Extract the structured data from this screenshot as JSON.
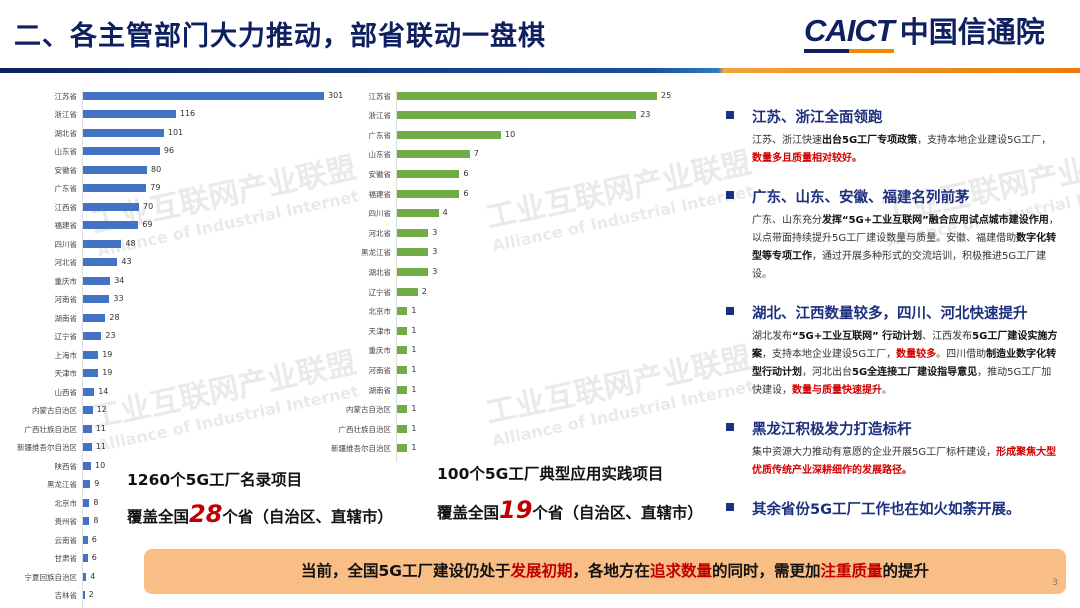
{
  "header": {
    "title": "二、各主管部门大力推动，部省联动一盘棋",
    "logo_en": "CAICT",
    "logo_cn": "中国信通院"
  },
  "watermark": {
    "cn": "工业互联网产业联盟",
    "en": "Alliance of Industrial Internet"
  },
  "colors": {
    "left_bar": "#4472c4",
    "right_bar": "#70ad47",
    "accent_red": "#c00000",
    "navy": "#1d2f7f",
    "banner": "#f8be86"
  },
  "chart_data": [
    {
      "type": "bar",
      "orientation": "horizontal",
      "categories": [
        "江苏省",
        "浙江省",
        "湖北省",
        "山东省",
        "安徽省",
        "广东省",
        "江西省",
        "福建省",
        "四川省",
        "河北省",
        "重庆市",
        "河南省",
        "湖南省",
        "辽宁省",
        "上海市",
        "天津市",
        "山西省",
        "内蒙古自治区",
        "广西壮族自治区",
        "新疆维吾尔自治区",
        "陕西省",
        "黑龙江省",
        "北京市",
        "贵州省",
        "云南省",
        "甘肃省",
        "宁夏回族自治区",
        "吉林省"
      ],
      "values": [
        301,
        116,
        101,
        96,
        80,
        79,
        70,
        69,
        48,
        43,
        34,
        33,
        28,
        23,
        19,
        19,
        14,
        12,
        11,
        11,
        10,
        9,
        8,
        8,
        6,
        6,
        4,
        2
      ]
    },
    {
      "type": "bar",
      "orientation": "horizontal",
      "categories": [
        "江苏省",
        "浙江省",
        "广东省",
        "山东省",
        "安徽省",
        "福建省",
        "四川省",
        "河北省",
        "黑龙江省",
        "湖北省",
        "辽宁省",
        "北京市",
        "天津市",
        "重庆市",
        "河南省",
        "湖南省",
        "内蒙古自治区",
        "广西壮族自治区",
        "新疆维吾尔自治区"
      ],
      "values": [
        25,
        23,
        10,
        7,
        6,
        6,
        4,
        3,
        3,
        3,
        2,
        1,
        1,
        1,
        1,
        1,
        1,
        1,
        1
      ]
    }
  ],
  "stats": {
    "left_line1": "1260个5G工厂名录项目",
    "left_pre": "覆盖全国",
    "left_num": "28",
    "left_post": "个省（自治区、直辖市）",
    "right_line1": "100个5G工厂典型应用实践项目",
    "right_pre": "覆盖全国",
    "right_num": "19",
    "right_post": "个省（自治区、直辖市）"
  },
  "points": [
    {
      "title": "江苏、浙江全面领跑",
      "body": [
        [
          "n",
          "江苏、浙江快速"
        ],
        [
          "b",
          "出台5G工厂专项政策"
        ],
        [
          "n",
          "，支持本地企业建设5G工厂，"
        ],
        [
          "r",
          "数量多且质量相对较好。"
        ]
      ]
    },
    {
      "title": "广东、山东、安徽、福建名列前茅",
      "body": [
        [
          "n",
          "广东、山东充分"
        ],
        [
          "b",
          "发挥“5G+工业互联网”融合应用试点城市建设作用"
        ],
        [
          "n",
          "，以点带面持续提升5G工厂建设数量与质量。安徽、福建借助"
        ],
        [
          "b",
          "数字化转型等专项工作"
        ],
        [
          "n",
          "，通过开展多种形式的交流培训，积极推进5G工厂建设。"
        ]
      ]
    },
    {
      "title": "湖北、江西数量较多，四川、河北快速提升",
      "body": [
        [
          "n",
          "湖北发布"
        ],
        [
          "b",
          "“5G+工业互联网” 行动计划"
        ],
        [
          "n",
          "、江西发布"
        ],
        [
          "b",
          "5G工厂建设实施方案"
        ],
        [
          "n",
          "，支持本地企业建设5G工厂，"
        ],
        [
          "r",
          "数量较多"
        ],
        [
          "n",
          "。四川借助"
        ],
        [
          "b",
          "制造业数字化转型行动计划"
        ],
        [
          "n",
          "，河北出台"
        ],
        [
          "b",
          "5G全连接工厂建设指导意见"
        ],
        [
          "n",
          "，推动5G工厂加快建设，"
        ],
        [
          "r",
          "数量与质量快速提升"
        ],
        [
          "n",
          "。"
        ]
      ]
    },
    {
      "title": "黑龙江积极发力打造标杆",
      "body": [
        [
          "n",
          "集中资源大力推动有意愿的企业开展5G工厂标杆建设，"
        ],
        [
          "r",
          "形成聚焦大型优质传统产业深耕细作的发展路径。"
        ]
      ]
    },
    {
      "title": "其余省份5G工厂工作也在如火如荼开展。",
      "body": []
    }
  ],
  "banner": [
    [
      "n",
      "当前，全国5G工厂建设仍处于"
    ],
    [
      "r",
      "发展初期"
    ],
    [
      "n",
      "，各地方在"
    ],
    [
      "r",
      "追求数量"
    ],
    [
      "n",
      "的同时，需更加"
    ],
    [
      "r",
      "注重质量"
    ],
    [
      "n",
      "的提升"
    ]
  ],
  "page_number": "3"
}
